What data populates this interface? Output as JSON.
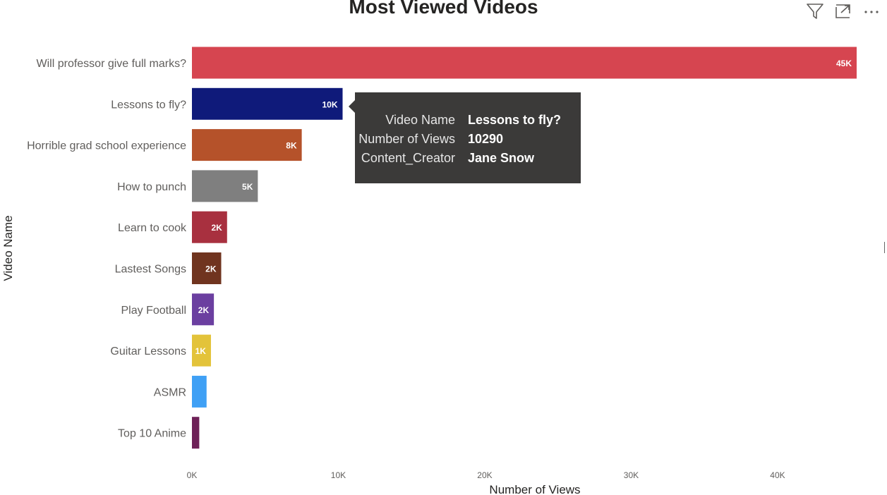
{
  "colors": {
    "bars": [
      "#d64550",
      "#0f1a7a",
      "#b5522a",
      "#7f7f7f",
      "#a8303f",
      "#70341f",
      "#6b3fa0",
      "#e3c33a",
      "#3fa0f5",
      "#6e2158"
    ]
  },
  "toolbar": {
    "filter_icon": "filter-icon",
    "focus_icon": "focus-mode-icon",
    "more_icon": "more-options-icon"
  },
  "chart_data": {
    "type": "bar",
    "orientation": "horizontal",
    "title": "Most Viewed Videos",
    "xlabel": "Number of Views",
    "ylabel": "Video Name",
    "categories": [
      "Will professor give full marks?",
      "Lessons to fly?",
      "Horrible grad school experience",
      "How to punch",
      "Learn to cook",
      "Lastest Songs",
      "Play Football",
      "Guitar Lessons",
      "ASMR",
      "Top 10 Anime"
    ],
    "values": [
      45400,
      10290,
      7500,
      4500,
      2400,
      2000,
      1500,
      1300,
      1000,
      500
    ],
    "data_labels": [
      "45K",
      "10K",
      "8K",
      "5K",
      "2K",
      "2K",
      "2K",
      "1K",
      "",
      ""
    ],
    "xlim": [
      0,
      45400
    ],
    "xticks": [
      0,
      10000,
      20000,
      30000,
      40000
    ],
    "xtick_labels": [
      "0K",
      "10K",
      "20K",
      "30K",
      "40K"
    ],
    "grid": false,
    "legend": false
  },
  "tooltip": {
    "rows": [
      {
        "key": "Video Name",
        "value": "Lessons to fly?"
      },
      {
        "key": "Number of Views",
        "value": "10290"
      },
      {
        "key": "Content_Creator",
        "value": "Jane Snow"
      }
    ]
  }
}
